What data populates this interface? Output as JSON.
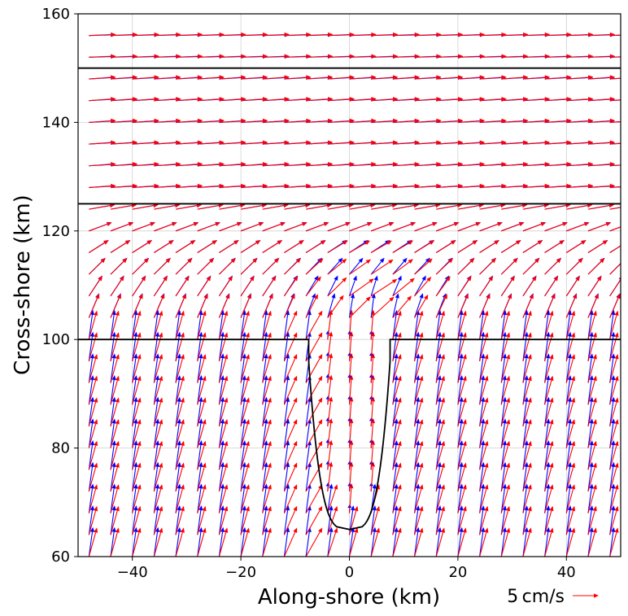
{
  "chart_data": {
    "type": "quiver",
    "xlabel": "Along-shore (km)",
    "ylabel": "Cross-shore (km)",
    "xlim": [
      -50,
      50
    ],
    "ylim": [
      60,
      160
    ],
    "xticks": [
      -40,
      -20,
      0,
      20,
      40
    ],
    "yticks": [
      60,
      80,
      100,
      120,
      140,
      160
    ],
    "xtick_labels": [
      "−40",
      "−20",
      "0",
      "20",
      "40"
    ],
    "ytick_labels": [
      "60",
      "80",
      "100",
      "120",
      "140",
      "160"
    ],
    "grid": true,
    "quiver_key": {
      "label": "5 cm/s",
      "magnitude_cm_s": 5,
      "color": "#ff0000",
      "placement": "bottom-right, below axes"
    },
    "series_colors": {
      "series_a": "#0000ff",
      "series_b": "#ff0000"
    },
    "grid_spacing_km": {
      "x": 4,
      "y": 4
    },
    "x_positions_start": -48,
    "y_positions_start": 60,
    "horizontal_lines_km": [
      150,
      125
    ],
    "coastline": {
      "color": "#000000",
      "shelf_y": 100,
      "canyon_left_x": -7.5,
      "canyon_right_x": 7.5,
      "canyon_bottom_y": 65
    }
  }
}
